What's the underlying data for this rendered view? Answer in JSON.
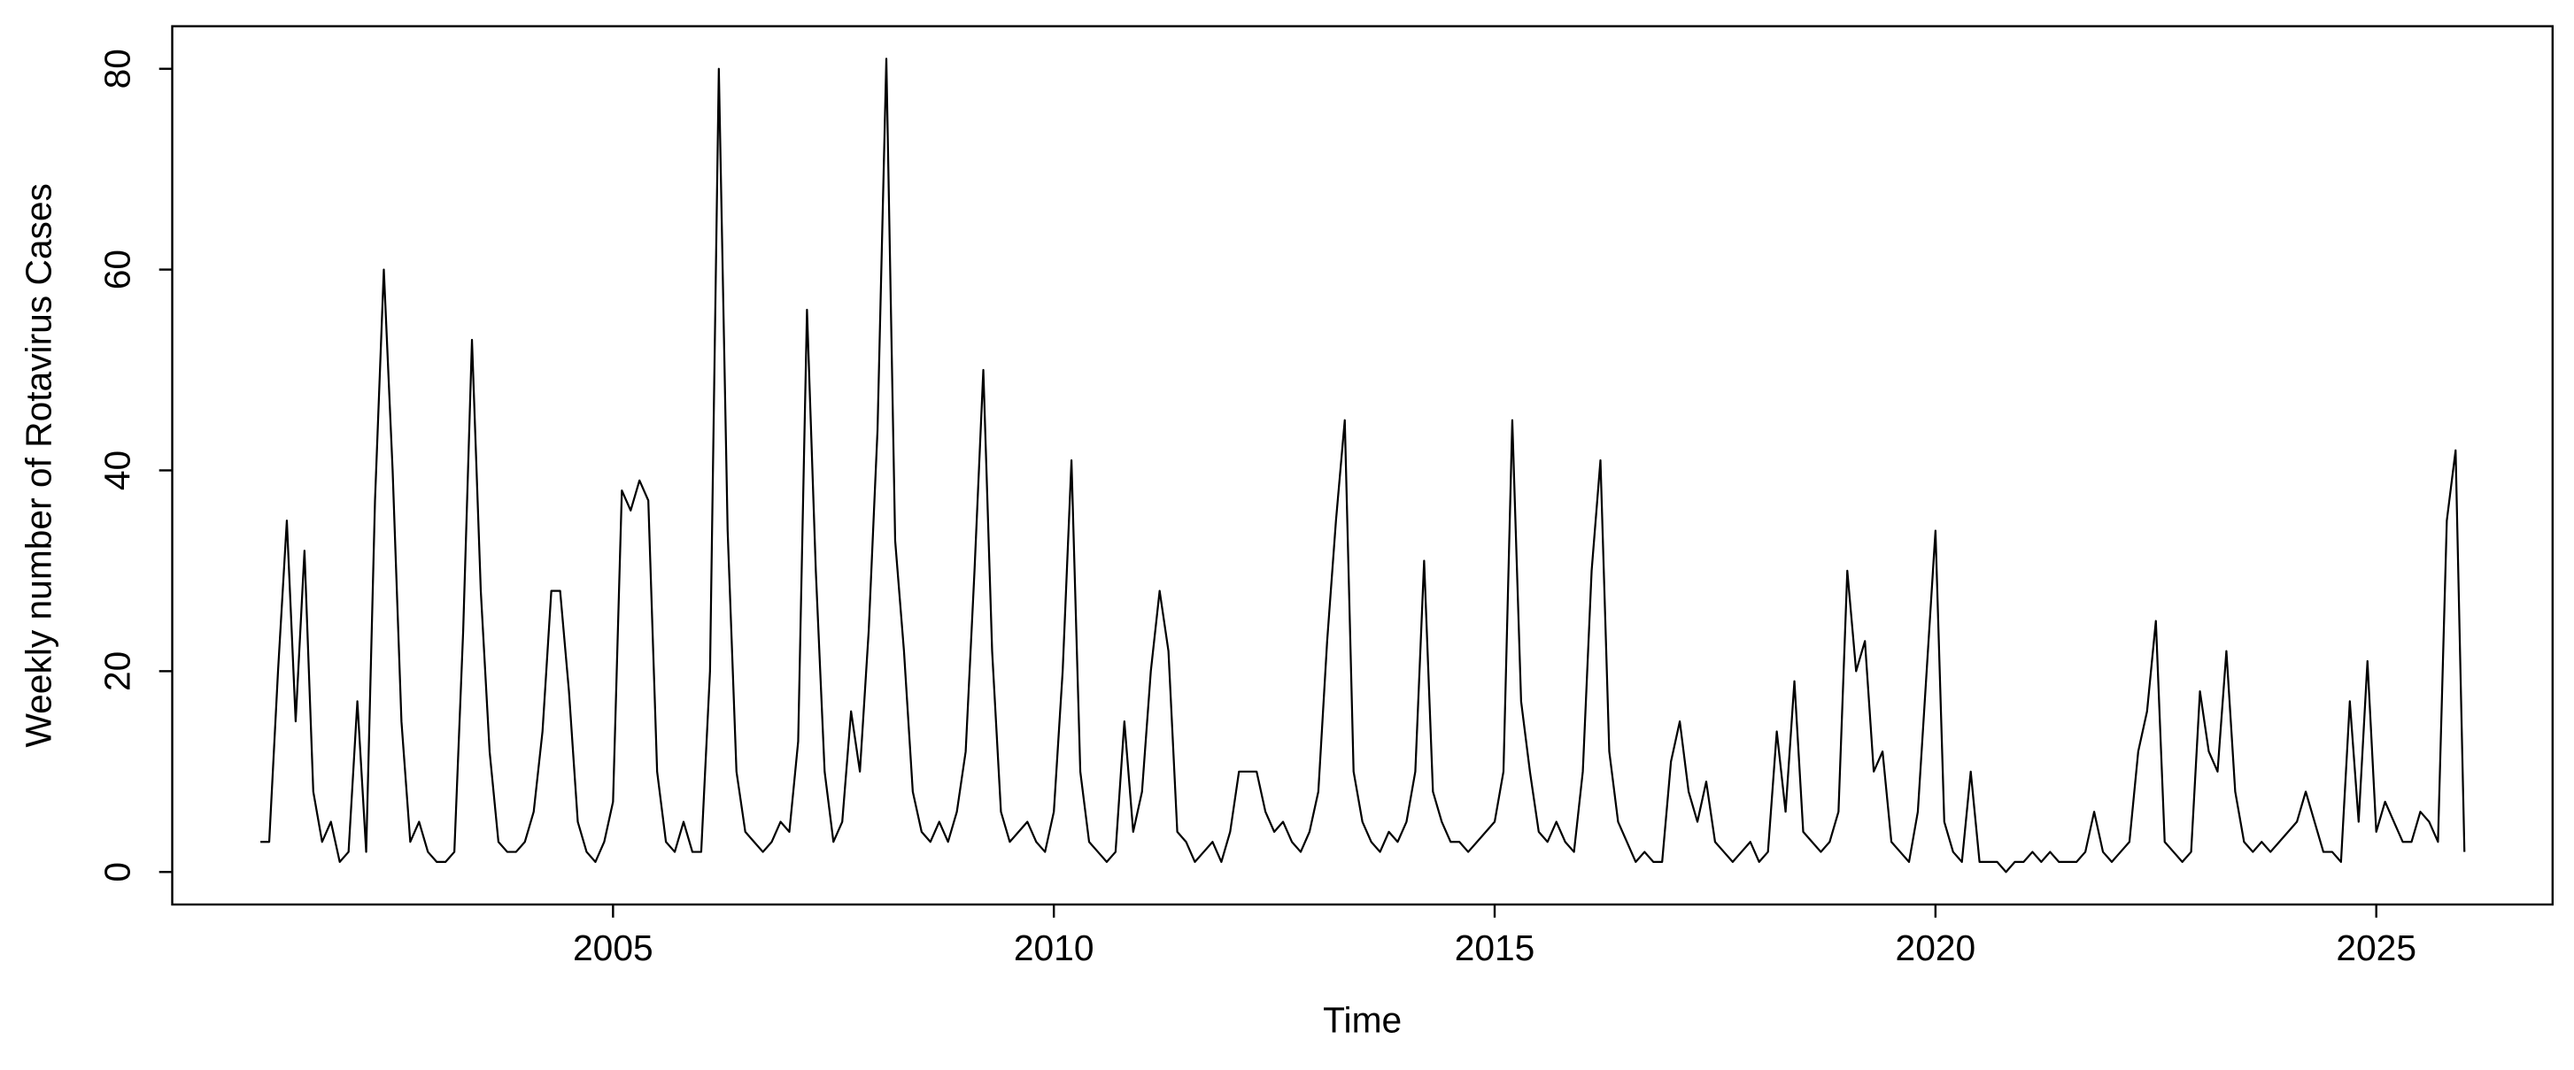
{
  "chart_data": {
    "type": "line",
    "x_label": "Time",
    "y_label": "Weekly number of Rotavirus Cases",
    "color": "#000000",
    "xlim": [
      2000,
      2027
    ],
    "ylim": [
      -3.24,
      84.24
    ],
    "xticks": [
      2005,
      2010,
      2015,
      2020,
      2025
    ],
    "yticks": [
      0,
      20,
      40,
      60,
      80
    ],
    "x": [
      2001.0,
      2001.1,
      2001.2,
      2001.3,
      2001.4,
      2001.5,
      2001.6,
      2001.7,
      2001.8,
      2001.9,
      2002.0,
      2002.1,
      2002.2,
      2002.3,
      2002.4,
      2002.5,
      2002.6,
      2002.7,
      2002.8,
      2002.9,
      2003.0,
      2003.1,
      2003.2,
      2003.3,
      2003.4,
      2003.5,
      2003.6,
      2003.7,
      2003.8,
      2003.9,
      2004.0,
      2004.1,
      2004.2,
      2004.3,
      2004.4,
      2004.5,
      2004.6,
      2004.7,
      2004.8,
      2004.9,
      2005.0,
      2005.1,
      2005.2,
      2005.3,
      2005.4,
      2005.5,
      2005.6,
      2005.7,
      2005.8,
      2005.9,
      2006.0,
      2006.1,
      2006.2,
      2006.3,
      2006.4,
      2006.5,
      2006.6,
      2006.7,
      2006.8,
      2006.9,
      2007.0,
      2007.1,
      2007.2,
      2007.3,
      2007.4,
      2007.5,
      2007.6,
      2007.7,
      2007.8,
      2007.9,
      2008.0,
      2008.1,
      2008.2,
      2008.3,
      2008.4,
      2008.5,
      2008.6,
      2008.7,
      2008.8,
      2008.9,
      2009.0,
      2009.1,
      2009.2,
      2009.3,
      2009.4,
      2009.5,
      2009.6,
      2009.7,
      2009.8,
      2009.9,
      2010.0,
      2010.1,
      2010.2,
      2010.3,
      2010.4,
      2010.5,
      2010.6,
      2010.7,
      2010.8,
      2010.9,
      2011.0,
      2011.1,
      2011.2,
      2011.3,
      2011.4,
      2011.5,
      2011.6,
      2011.7,
      2011.8,
      2011.9,
      2012.0,
      2012.1,
      2012.2,
      2012.3,
      2012.4,
      2012.5,
      2012.6,
      2012.7,
      2012.8,
      2012.9,
      2013.0,
      2013.1,
      2013.2,
      2013.3,
      2013.4,
      2013.5,
      2013.6,
      2013.7,
      2013.8,
      2013.9,
      2014.0,
      2014.1,
      2014.2,
      2014.3,
      2014.4,
      2014.5,
      2014.6,
      2014.7,
      2014.8,
      2014.9,
      2015.0,
      2015.1,
      2015.2,
      2015.3,
      2015.4,
      2015.5,
      2015.6,
      2015.7,
      2015.8,
      2015.9,
      2016.0,
      2016.1,
      2016.2,
      2016.3,
      2016.4,
      2016.5,
      2016.6,
      2016.7,
      2016.8,
      2016.9,
      2017.0,
      2017.1,
      2017.2,
      2017.3,
      2017.4,
      2017.5,
      2017.6,
      2017.7,
      2017.8,
      2017.9,
      2018.0,
      2018.1,
      2018.2,
      2018.3,
      2018.4,
      2018.5,
      2018.6,
      2018.7,
      2018.8,
      2018.9,
      2019.0,
      2019.1,
      2019.2,
      2019.3,
      2019.4,
      2019.5,
      2019.6,
      2019.7,
      2019.8,
      2019.9,
      2020.0,
      2020.1,
      2020.2,
      2020.3,
      2020.4,
      2020.5,
      2020.6,
      2020.7,
      2020.8,
      2020.9,
      2021.0,
      2021.1,
      2021.2,
      2021.3,
      2021.4,
      2021.5,
      2021.6,
      2021.7,
      2021.8,
      2021.9,
      2022.0,
      2022.1,
      2022.2,
      2022.3,
      2022.4,
      2022.5,
      2022.6,
      2022.7,
      2022.8,
      2022.9,
      2023.0,
      2023.1,
      2023.2,
      2023.3,
      2023.4,
      2023.5,
      2023.6,
      2023.7,
      2023.8,
      2023.9,
      2024.0,
      2024.1,
      2024.2,
      2024.3,
      2024.4,
      2024.5,
      2024.6,
      2024.7,
      2024.8,
      2024.9,
      2025.0,
      2025.1,
      2025.2,
      2025.3,
      2025.4,
      2025.5,
      2025.6,
      2025.7,
      2025.8,
      2025.9,
      2026.0
    ],
    "values": [
      3,
      3,
      20,
      35,
      15,
      32,
      8,
      3,
      5,
      1,
      2,
      17,
      2,
      37,
      60,
      40,
      15,
      3,
      5,
      2,
      1,
      1,
      2,
      24,
      53,
      28,
      12,
      3,
      2,
      2,
      3,
      6,
      14,
      28,
      28,
      18,
      5,
      2,
      1,
      3,
      7,
      38,
      36,
      39,
      37,
      10,
      3,
      2,
      5,
      2,
      2,
      20,
      80,
      34,
      10,
      4,
      3,
      2,
      3,
      5,
      4,
      13,
      56,
      30,
      10,
      3,
      5,
      16,
      10,
      24,
      44,
      81,
      33,
      22,
      8,
      4,
      3,
      5,
      3,
      6,
      12,
      30,
      50,
      22,
      6,
      3,
      4,
      5,
      3,
      2,
      6,
      20,
      41,
      10,
      3,
      2,
      1,
      2,
      15,
      4,
      8,
      20,
      28,
      22,
      4,
      3,
      1,
      2,
      3,
      1,
      4,
      10,
      10,
      10,
      6,
      4,
      5,
      3,
      2,
      4,
      8,
      23,
      35,
      45,
      10,
      5,
      3,
      2,
      4,
      3,
      5,
      10,
      31,
      8,
      5,
      3,
      3,
      2,
      3,
      4,
      5,
      10,
      45,
      17,
      10,
      4,
      3,
      5,
      3,
      2,
      10,
      30,
      41,
      12,
      5,
      3,
      1,
      2,
      1,
      1,
      11,
      15,
      8,
      5,
      9,
      3,
      2,
      1,
      2,
      3,
      1,
      2,
      14,
      6,
      19,
      4,
      3,
      2,
      3,
      6,
      30,
      20,
      23,
      10,
      12,
      3,
      2,
      1,
      6,
      20,
      34,
      5,
      2,
      1,
      10,
      1,
      1,
      1,
      0,
      1,
      1,
      2,
      1,
      2,
      1,
      1,
      1,
      2,
      6,
      2,
      1,
      2,
      3,
      12,
      16,
      25,
      3,
      2,
      1,
      2,
      18,
      12,
      10,
      22,
      8,
      3,
      2,
      3,
      2,
      3,
      4,
      5,
      8,
      5,
      2,
      2,
      1,
      17,
      5,
      21,
      4,
      7,
      5,
      3,
      3,
      6,
      5,
      3,
      35,
      42,
      2
    ]
  }
}
